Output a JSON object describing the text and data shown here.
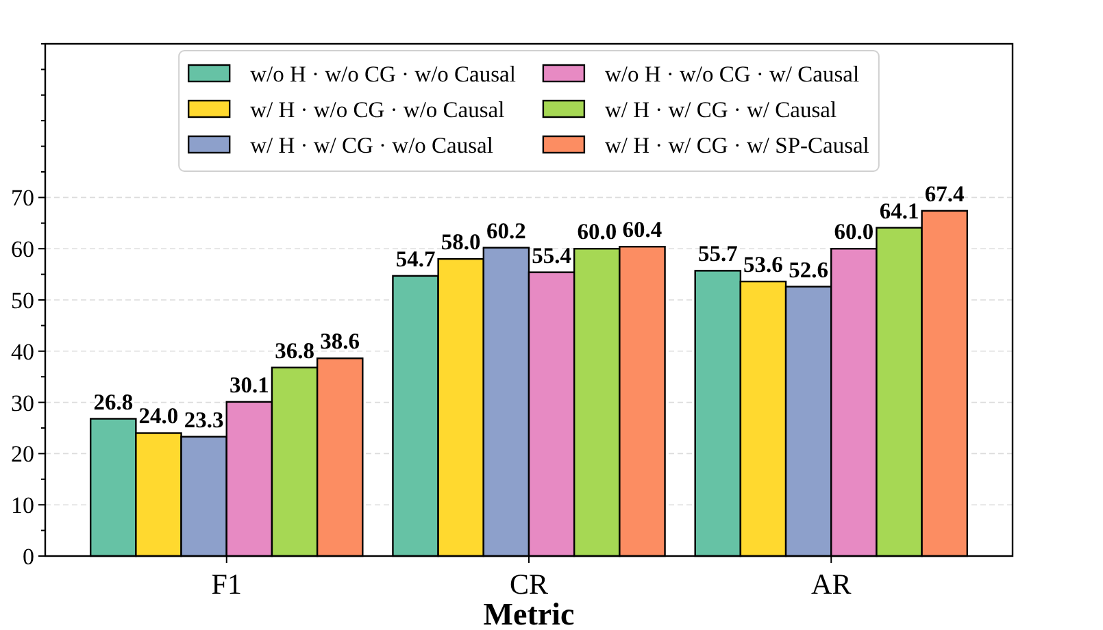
{
  "chart_data": {
    "type": "bar",
    "xlabel": "Metric",
    "categories": [
      "F1",
      "CR",
      "AR"
    ],
    "series": [
      {
        "name": "w/o H · w/o CG · w/o Causal",
        "color": "#66c2a5",
        "values": [
          26.8,
          54.7,
          55.7
        ],
        "value_labels": [
          "26.8",
          "54.7",
          "55.7"
        ]
      },
      {
        "name": "w/ H · w/o CG · w/o Causal",
        "color": "#ffd92f",
        "values": [
          24.0,
          58.0,
          53.6
        ],
        "value_labels": [
          "24.0",
          "58.0",
          "53.6"
        ]
      },
      {
        "name": "w/ H · w/ CG · w/o Causal",
        "color": "#8da0cb",
        "values": [
          23.3,
          60.2,
          52.6
        ],
        "value_labels": [
          "23.3",
          "60.2",
          "52.6"
        ]
      },
      {
        "name": "w/o H · w/o CG · w/ Causal",
        "color": "#e78ac3",
        "values": [
          30.1,
          55.4,
          60.0
        ],
        "value_labels": [
          "30.1",
          "55.4",
          "60.0"
        ]
      },
      {
        "name": "w/ H · w/ CG · w/ Causal",
        "color": "#a6d854",
        "values": [
          36.8,
          60.0,
          64.1
        ],
        "value_labels": [
          "36.8",
          "60.0",
          "64.1"
        ]
      },
      {
        "name": "w/ H · w/ CG · w/ SP-Causal",
        "color": "#fc8d62",
        "values": [
          38.6,
          60.4,
          67.4
        ],
        "value_labels": [
          "38.6",
          "60.4",
          "67.4"
        ]
      }
    ],
    "ylim": [
      0,
      100
    ],
    "yticks": [
      0,
      {
        "value": 5,
        "label": null
      },
      10,
      {
        "value": 15,
        "label": null
      },
      20,
      {
        "value": 25,
        "label": null
      },
      30,
      {
        "value": 35,
        "label": null
      },
      40,
      {
        "value": 45,
        "label": null
      },
      50,
      {
        "value": 55,
        "label": null
      },
      60,
      {
        "value": 65,
        "label": null
      },
      70,
      {
        "value": 75,
        "label": null
      },
      {
        "value": 80,
        "label": null
      },
      {
        "value": 85,
        "label": null
      },
      {
        "value": 90,
        "label": null
      },
      {
        "value": 95,
        "label": null
      },
      {
        "value": 100,
        "label": null
      }
    ],
    "grid": "y",
    "legend": "top"
  }
}
